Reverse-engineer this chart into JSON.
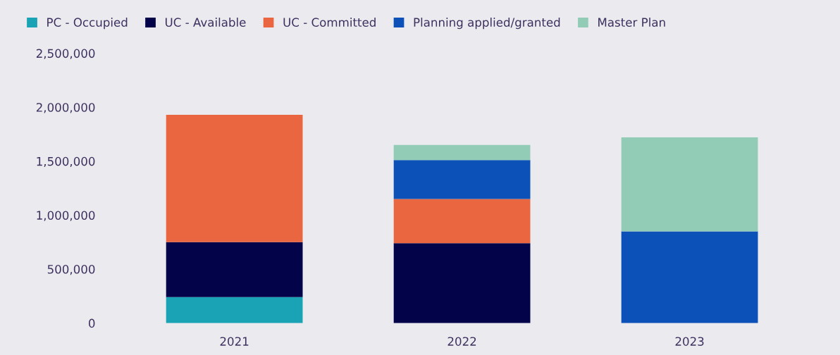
{
  "chart_data": {
    "type": "bar",
    "stacked": true,
    "categories": [
      "2021",
      "2022",
      "2023"
    ],
    "series": [
      {
        "name": "PC - Occupied",
        "color": "#1aa3b5",
        "values": [
          240000,
          0,
          0
        ]
      },
      {
        "name": "UC - Available",
        "color": "#03034a",
        "values": [
          510000,
          740000,
          0
        ]
      },
      {
        "name": "UC - Committed",
        "color": "#ea6640",
        "values": [
          1180000,
          410000,
          0
        ]
      },
      {
        "name": "Planning applied/granted",
        "color": "#0b51b8",
        "values": [
          0,
          360000,
          850000
        ]
      },
      {
        "name": "Master Plan",
        "color": "#93ccb6",
        "values": [
          0,
          140000,
          870000
        ]
      }
    ],
    "ylim": [
      0,
      2500000
    ],
    "yticks": [
      {
        "value": 0,
        "label": "0"
      },
      {
        "value": 500000,
        "label": "500,000"
      },
      {
        "value": 1000000,
        "label": "1,000,000"
      },
      {
        "value": 1500000,
        "label": "1,500,000"
      },
      {
        "value": 2000000,
        "label": "2,000,000"
      },
      {
        "value": 2500000,
        "label": "2,500,000"
      }
    ],
    "grid": false,
    "legend": "top left"
  }
}
